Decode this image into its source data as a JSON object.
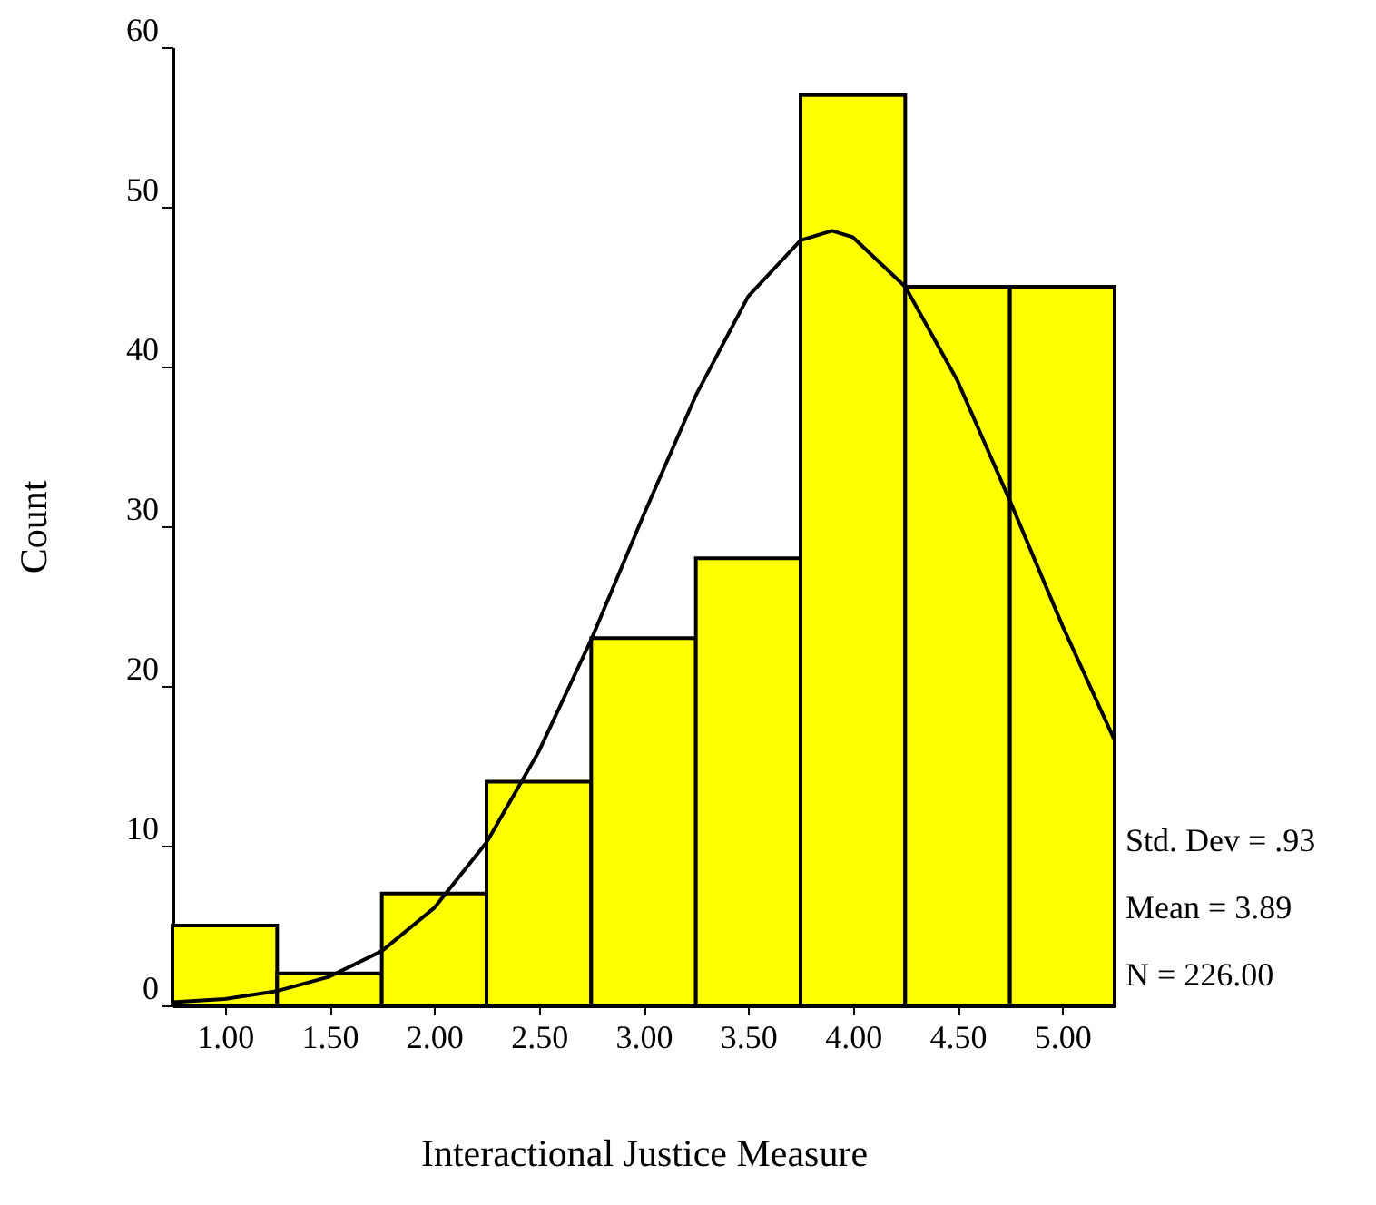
{
  "chart_data": {
    "type": "histogram",
    "xlabel": "Interactional Justice Measure",
    "ylabel": "Count",
    "bins": [
      0.75,
      1.25,
      1.75,
      2.25,
      2.75,
      3.25,
      3.75,
      4.25,
      4.75,
      5.25
    ],
    "values": [
      5,
      2,
      7,
      14,
      23,
      28,
      57,
      45,
      45
    ],
    "color": "#ffff00",
    "series": [
      {
        "type": "line",
        "color": "#000000",
        "x": [
          0.75,
          1.0,
          1.25,
          1.5,
          1.75,
          2.0,
          2.25,
          2.5,
          2.75,
          3.0,
          3.25,
          3.5,
          3.75,
          3.9,
          4.0,
          4.25,
          4.5,
          4.75,
          5.0,
          5.25
        ],
        "values": [
          0.2,
          0.4,
          0.9,
          1.8,
          3.4,
          6.1,
          10.2,
          15.9,
          22.9,
          30.7,
          38.2,
          44.4,
          47.9,
          48.5,
          48.1,
          45.0,
          39.1,
          31.6,
          23.8,
          16.6
        ]
      }
    ],
    "xlim": [
      0.75,
      5.25
    ],
    "xticks": [
      {
        "value": 1,
        "label": "1.00"
      },
      {
        "value": 1.5,
        "label": "1.50"
      },
      {
        "value": 2,
        "label": "2.00"
      },
      {
        "value": 2.5,
        "label": "2.50"
      },
      {
        "value": 3,
        "label": "3.00"
      },
      {
        "value": 3.5,
        "label": "3.50"
      },
      {
        "value": 4,
        "label": "4.00"
      },
      {
        "value": 4.5,
        "label": "4.50"
      },
      {
        "value": 5,
        "label": "5.00"
      }
    ],
    "ylim": [
      0,
      60
    ],
    "yticks": [
      0,
      10,
      20,
      30,
      40,
      50,
      60
    ],
    "grid": false,
    "annotations": [
      "Std. Dev = .93",
      "Mean = 3.89",
      "N = 226.00"
    ]
  }
}
